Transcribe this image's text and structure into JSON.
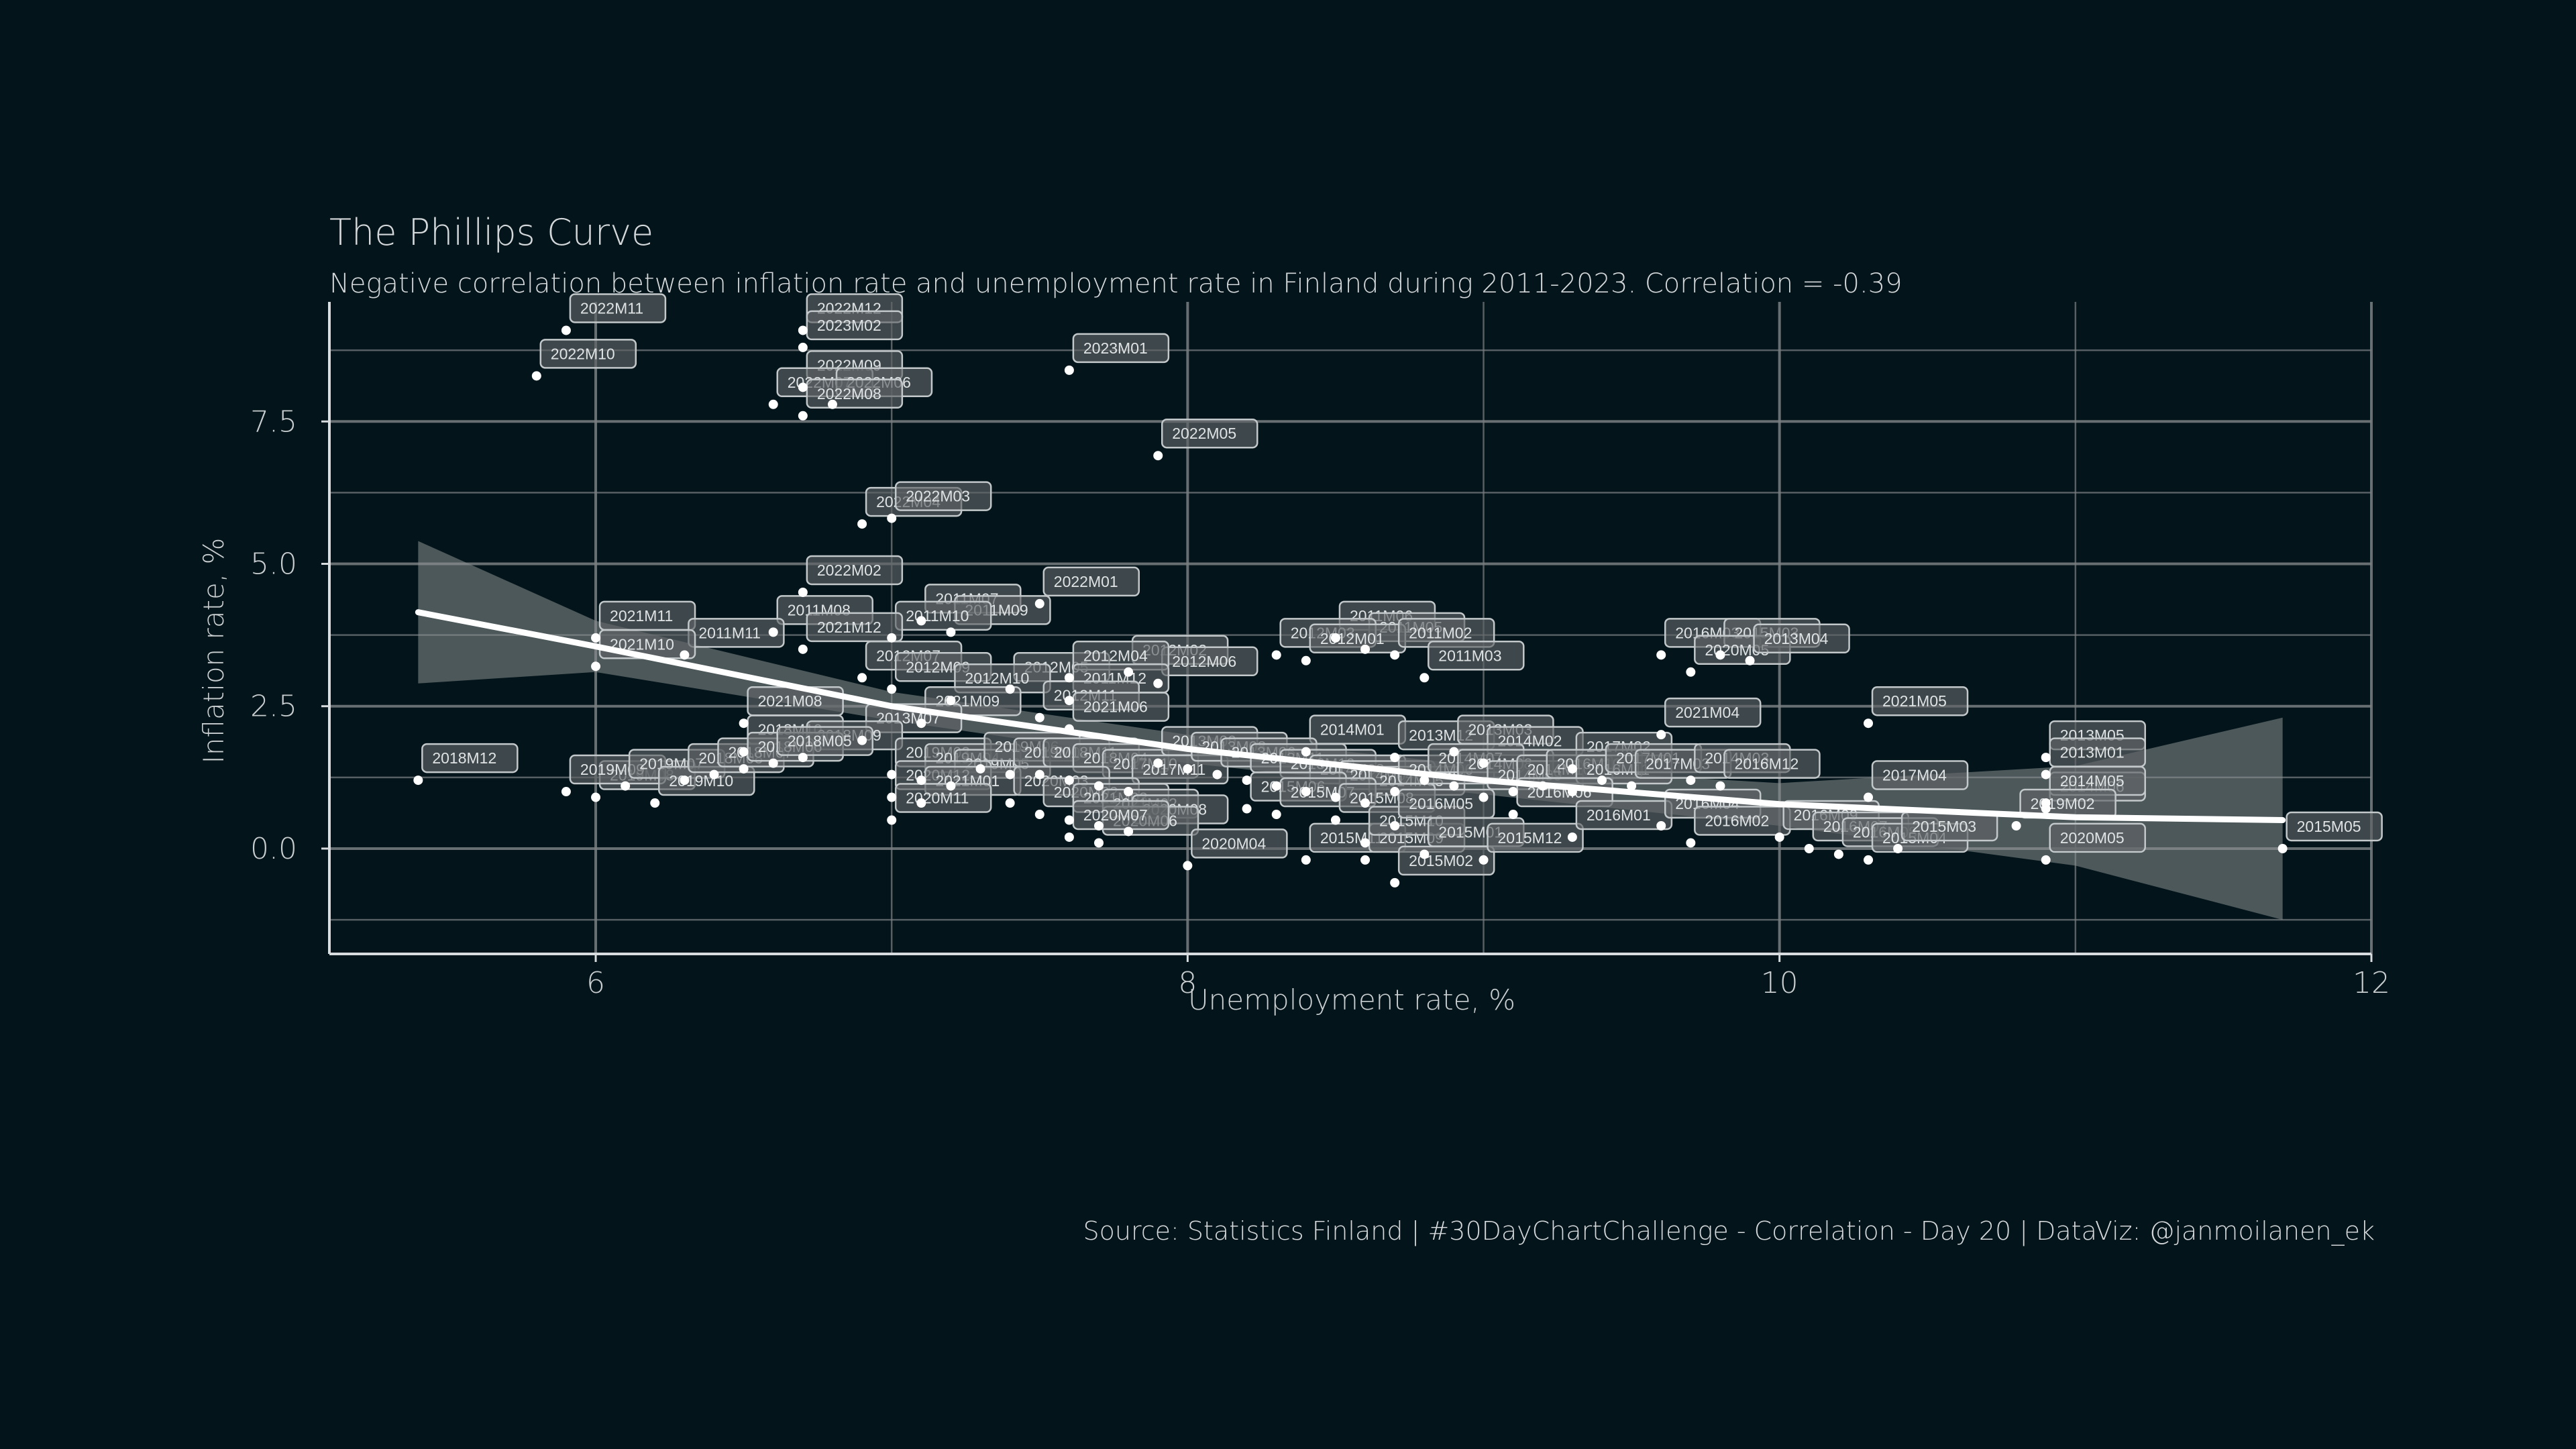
{
  "chart_data": {
    "type": "scatter",
    "title": "The Phillips Curve",
    "subtitle": "Negative correlation between inflation rate and unemployment rate in Finland during 2011-2023. Correlation =  -0.39",
    "caption": "Source: Statistics Finland | #30DayChartChallenge - Correlation - Day 20  |  DataViz: @janmoilanen_ek",
    "xlabel": "Unemployment rate, %",
    "ylabel": "Inflation rate, %",
    "xlim": [
      5.1,
      12.0
    ],
    "ylim": [
      -1.85,
      9.6
    ],
    "xticks": [
      6,
      8,
      10,
      12
    ],
    "yticks": [
      0.0,
      2.5,
      5.0,
      7.5
    ],
    "xtick_labels": [
      "6",
      "8",
      "10",
      "12"
    ],
    "ytick_labels": [
      "0.0",
      "2.5",
      "5.0",
      "7.5"
    ],
    "grid": true,
    "colors": {
      "background": "#03141a",
      "points": "#ffffff",
      "grid": "#7a7f82",
      "band": "#8a8f91",
      "fit_line": "#ffffff",
      "label_fill": "#5d6366"
    },
    "fit": {
      "method": "loess",
      "line": [
        [
          5.4,
          4.15
        ],
        [
          6.0,
          3.55
        ],
        [
          7.0,
          2.5
        ],
        [
          8.0,
          1.75
        ],
        [
          9.0,
          1.2
        ],
        [
          10.0,
          0.78
        ],
        [
          11.0,
          0.55
        ],
        [
          11.7,
          0.5
        ]
      ],
      "band_upper": [
        [
          5.4,
          5.4
        ],
        [
          6.0,
          4.0
        ],
        [
          7.0,
          2.75
        ],
        [
          8.0,
          2.0
        ],
        [
          9.0,
          1.45
        ],
        [
          10.0,
          1.15
        ],
        [
          11.0,
          1.45
        ],
        [
          11.7,
          2.3
        ]
      ],
      "band_lower": [
        [
          5.4,
          2.9
        ],
        [
          6.0,
          3.1
        ],
        [
          7.0,
          2.25
        ],
        [
          8.0,
          1.5
        ],
        [
          9.0,
          0.95
        ],
        [
          10.0,
          0.4
        ],
        [
          11.0,
          -0.3
        ],
        [
          11.7,
          -1.25
        ]
      ]
    },
    "points": [
      {
        "x": 5.9,
        "y": 9.1,
        "label": "2022M11"
      },
      {
        "x": 5.8,
        "y": 8.3,
        "label": "2022M10"
      },
      {
        "x": 6.7,
        "y": 9.1,
        "label": "2022M12"
      },
      {
        "x": 6.7,
        "y": 8.8,
        "label": "2023M02"
      },
      {
        "x": 6.7,
        "y": 8.1,
        "label": "2022M09"
      },
      {
        "x": 6.6,
        "y": 7.8,
        "label": "2022M07"
      },
      {
        "x": 6.8,
        "y": 7.8,
        "label": "2022M06"
      },
      {
        "x": 6.7,
        "y": 7.6,
        "label": "2022M08"
      },
      {
        "x": 7.6,
        "y": 8.4,
        "label": "2023M01"
      },
      {
        "x": 7.9,
        "y": 6.9,
        "label": "2022M05"
      },
      {
        "x": 6.9,
        "y": 5.7,
        "label": "2022M04"
      },
      {
        "x": 7.0,
        "y": 5.8,
        "label": "2022M03"
      },
      {
        "x": 6.7,
        "y": 4.5,
        "label": "2022M02"
      },
      {
        "x": 7.5,
        "y": 4.3,
        "label": "2022M01"
      },
      {
        "x": 6.0,
        "y": 3.7,
        "label": "2021M11"
      },
      {
        "x": 6.6,
        "y": 3.8,
        "label": "2011M08"
      },
      {
        "x": 7.1,
        "y": 4.0,
        "label": "2011M07"
      },
      {
        "x": 7.2,
        "y": 3.8,
        "label": "2011M09"
      },
      {
        "x": 7.0,
        "y": 3.7,
        "label": "2011M10"
      },
      {
        "x": 6.3,
        "y": 3.4,
        "label": "2011M11"
      },
      {
        "x": 6.0,
        "y": 3.2,
        "label": "2021M10"
      },
      {
        "x": 6.7,
        "y": 3.5,
        "label": "2021M12"
      },
      {
        "x": 8.5,
        "y": 3.7,
        "label": "2011M06"
      },
      {
        "x": 8.6,
        "y": 3.5,
        "label": "2011M05"
      },
      {
        "x": 8.3,
        "y": 3.4,
        "label": "2012M03"
      },
      {
        "x": 8.4,
        "y": 3.3,
        "label": "2012M01"
      },
      {
        "x": 8.7,
        "y": 3.4,
        "label": "2011M02"
      },
      {
        "x": 8.8,
        "y": 3.0,
        "label": "2011M03"
      },
      {
        "x": 7.8,
        "y": 3.1,
        "label": "2012M02"
      },
      {
        "x": 7.9,
        "y": 2.9,
        "label": "2012M06"
      },
      {
        "x": 6.9,
        "y": 3.0,
        "label": "2012M07"
      },
      {
        "x": 7.4,
        "y": 2.8,
        "label": "2012M05"
      },
      {
        "x": 7.6,
        "y": 3.0,
        "label": "2012M04"
      },
      {
        "x": 7.0,
        "y": 2.8,
        "label": "2012M09"
      },
      {
        "x": 7.6,
        "y": 2.6,
        "label": "2011M12"
      },
      {
        "x": 7.2,
        "y": 2.6,
        "label": "2012M10"
      },
      {
        "x": 7.5,
        "y": 2.3,
        "label": "2012M11"
      },
      {
        "x": 6.5,
        "y": 2.2,
        "label": "2021M08"
      },
      {
        "x": 7.1,
        "y": 2.2,
        "label": "2021M09"
      },
      {
        "x": 7.6,
        "y": 2.1,
        "label": "2021M06"
      },
      {
        "x": 6.9,
        "y": 1.9,
        "label": "2013M07"
      },
      {
        "x": 6.5,
        "y": 1.7,
        "label": "2018M10"
      },
      {
        "x": 6.7,
        "y": 1.6,
        "label": "2018M09"
      },
      {
        "x": 8.4,
        "y": 1.7,
        "label": "2014M01"
      },
      {
        "x": 8.7,
        "y": 1.6,
        "label": "2013M12"
      },
      {
        "x": 8.9,
        "y": 1.7,
        "label": "2013M03"
      },
      {
        "x": 9.0,
        "y": 1.5,
        "label": "2014M02"
      },
      {
        "x": 9.3,
        "y": 1.4,
        "label": "2017M02"
      },
      {
        "x": 9.6,
        "y": 2.0,
        "label": "2021M04"
      },
      {
        "x": 10.3,
        "y": 2.2,
        "label": "2021M05"
      },
      {
        "x": 10.9,
        "y": 1.6,
        "label": "2013M05"
      },
      {
        "x": 9.6,
        "y": 3.4,
        "label": "2016M03"
      },
      {
        "x": 9.8,
        "y": 3.4,
        "label": "2015M03"
      },
      {
        "x": 9.7,
        "y": 3.1,
        "label": "2020M05"
      },
      {
        "x": 9.9,
        "y": 3.3,
        "label": "2013M04"
      },
      {
        "x": 6.0,
        "y": 0.9,
        "label": "2019M08"
      },
      {
        "x": 5.9,
        "y": 1.0,
        "label": "2019M09"
      },
      {
        "x": 6.1,
        "y": 1.1,
        "label": "2019M07"
      },
      {
        "x": 6.2,
        "y": 0.8,
        "label": "2019M10"
      },
      {
        "x": 6.3,
        "y": 1.2,
        "label": "2018M08"
      },
      {
        "x": 6.4,
        "y": 1.3,
        "label": "2018M07"
      },
      {
        "x": 5.4,
        "y": 1.2,
        "label": "2018M12"
      },
      {
        "x": 6.5,
        "y": 1.4,
        "label": "2018M06"
      },
      {
        "x": 6.6,
        "y": 1.5,
        "label": "2018M05"
      },
      {
        "x": 7.0,
        "y": 1.3,
        "label": "2019M03"
      },
      {
        "x": 7.1,
        "y": 1.2,
        "label": "2019M04"
      },
      {
        "x": 7.2,
        "y": 1.1,
        "label": "2019M05"
      },
      {
        "x": 7.3,
        "y": 1.4,
        "label": "2019M06"
      },
      {
        "x": 7.4,
        "y": 1.3,
        "label": "2019M02"
      },
      {
        "x": 7.5,
        "y": 1.3,
        "label": "2018M11"
      },
      {
        "x": 7.6,
        "y": 1.2,
        "label": "2018M04"
      },
      {
        "x": 7.7,
        "y": 1.1,
        "label": "2017M10"
      },
      {
        "x": 7.8,
        "y": 1.0,
        "label": "2017M11"
      },
      {
        "x": 7.9,
        "y": 1.5,
        "label": "2013M09"
      },
      {
        "x": 8.0,
        "y": 1.4,
        "label": "2013M08"
      },
      {
        "x": 8.1,
        "y": 1.3,
        "label": "2013M06"
      },
      {
        "x": 8.2,
        "y": 1.2,
        "label": "2013M11"
      },
      {
        "x": 8.3,
        "y": 1.1,
        "label": "2013M10"
      },
      {
        "x": 8.4,
        "y": 1.0,
        "label": "2014M03"
      },
      {
        "x": 8.5,
        "y": 0.9,
        "label": "2014M04"
      },
      {
        "x": 8.6,
        "y": 0.8,
        "label": "2014M05"
      },
      {
        "x": 8.7,
        "y": 1.0,
        "label": "2014M06"
      },
      {
        "x": 8.8,
        "y": 1.2,
        "label": "2014M07"
      },
      {
        "x": 8.9,
        "y": 1.1,
        "label": "2014M08"
      },
      {
        "x": 9.0,
        "y": 0.9,
        "label": "2014M09"
      },
      {
        "x": 9.1,
        "y": 1.0,
        "label": "2014M10"
      },
      {
        "x": 9.2,
        "y": 1.1,
        "label": "2016M10"
      },
      {
        "x": 9.3,
        "y": 1.0,
        "label": "2016M11"
      },
      {
        "x": 9.4,
        "y": 1.2,
        "label": "2017M01"
      },
      {
        "x": 9.5,
        "y": 1.1,
        "label": "2017M03"
      },
      {
        "x": 9.7,
        "y": 1.2,
        "label": "2014M03"
      },
      {
        "x": 9.8,
        "y": 1.1,
        "label": "2016M12"
      },
      {
        "x": 10.3,
        "y": 0.9,
        "label": "2017M04"
      },
      {
        "x": 10.9,
        "y": 1.3,
        "label": "2013M01"
      },
      {
        "x": 10.9,
        "y": 0.7,
        "label": "2014M06"
      },
      {
        "x": 10.9,
        "y": 0.8,
        "label": "2014M05"
      },
      {
        "x": 10.8,
        "y": 0.4,
        "label": "2019M02"
      },
      {
        "x": 7.0,
        "y": 0.9,
        "label": "2020M12"
      },
      {
        "x": 7.1,
        "y": 0.8,
        "label": "2021M01"
      },
      {
        "x": 7.0,
        "y": 0.5,
        "label": "2020M11"
      },
      {
        "x": 7.4,
        "y": 0.8,
        "label": "2020M03"
      },
      {
        "x": 7.5,
        "y": 0.6,
        "label": "2020M02"
      },
      {
        "x": 7.6,
        "y": 0.5,
        "label": "2021M03"
      },
      {
        "x": 7.7,
        "y": 0.4,
        "label": "2021M02"
      },
      {
        "x": 7.8,
        "y": 0.3,
        "label": "2020M08"
      },
      {
        "x": 7.7,
        "y": 0.1,
        "label": "2020M06"
      },
      {
        "x": 7.6,
        "y": 0.2,
        "label": "2020M07"
      },
      {
        "x": 8.0,
        "y": -0.3,
        "label": "2020M04"
      },
      {
        "x": 8.2,
        "y": 0.7,
        "label": "2015M06"
      },
      {
        "x": 8.3,
        "y": 0.6,
        "label": "2015M07"
      },
      {
        "x": 8.4,
        "y": -0.2,
        "label": "2015M11"
      },
      {
        "x": 8.5,
        "y": 0.5,
        "label": "2015M08"
      },
      {
        "x": 8.6,
        "y": -0.2,
        "label": "2015M09"
      },
      {
        "x": 8.6,
        "y": 0.1,
        "label": "2015M10"
      },
      {
        "x": 8.8,
        "y": -0.1,
        "label": "2015M01"
      },
      {
        "x": 8.7,
        "y": -0.6,
        "label": "2015M02"
      },
      {
        "x": 8.7,
        "y": 0.4,
        "label": "2016M05"
      },
      {
        "x": 9.0,
        "y": -0.2,
        "label": "2015M12"
      },
      {
        "x": 9.1,
        "y": 0.6,
        "label": "2016M06"
      },
      {
        "x": 9.3,
        "y": 0.2,
        "label": "2016M01"
      },
      {
        "x": 9.6,
        "y": 0.4,
        "label": "2016M04"
      },
      {
        "x": 9.7,
        "y": 0.1,
        "label": "2016M02"
      },
      {
        "x": 10.0,
        "y": 0.2,
        "label": "2016M09"
      },
      {
        "x": 10.1,
        "y": 0.0,
        "label": "2016M07"
      },
      {
        "x": 10.2,
        "y": -0.1,
        "label": "2016M08"
      },
      {
        "x": 10.3,
        "y": -0.2,
        "label": "2015M04"
      },
      {
        "x": 10.4,
        "y": 0.0,
        "label": "2015M03"
      },
      {
        "x": 10.9,
        "y": -0.2,
        "label": "2020M05"
      },
      {
        "x": 11.7,
        "y": 0.0,
        "label": "2015M05"
      }
    ]
  }
}
